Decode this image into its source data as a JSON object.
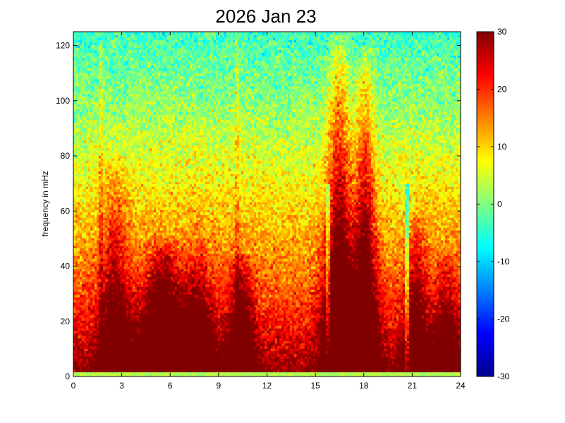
{
  "chart_data": {
    "type": "heatmap",
    "title": "2026 Jan 23",
    "xlabel": "",
    "ylabel": "frequency in mHz",
    "xlim": [
      0,
      24
    ],
    "ylim": [
      0,
      125
    ],
    "xticks": [
      0,
      3,
      6,
      9,
      12,
      15,
      18,
      21,
      24
    ],
    "yticks": [
      0,
      20,
      40,
      60,
      80,
      100,
      120
    ],
    "colorbar": {
      "colormap": "jet",
      "clim": [
        -30,
        30
      ],
      "ticks": [
        30,
        20,
        10,
        0,
        -10,
        -20,
        -30
      ]
    },
    "grid_resolution": {
      "x_bins": 182,
      "y_bins": 134
    },
    "features": [
      {
        "kind": "base",
        "description_values": {
          "x_range": [
            0,
            24
          ],
          "y_range": [
            0,
            125
          ]
        }
      },
      {
        "kind": "burst",
        "x_center": 5.6,
        "x_width": 0.9,
        "peak_freq": 50,
        "intensity": 30
      },
      {
        "kind": "burst",
        "x_center": 10.4,
        "x_width": 0.5,
        "peak_freq": 45,
        "intensity": 26
      },
      {
        "kind": "burst",
        "x_center": 16.5,
        "x_width": 0.55,
        "peak_freq": 125,
        "intensity": 32
      },
      {
        "kind": "burst",
        "x_center": 18.1,
        "x_width": 0.45,
        "peak_freq": 120,
        "intensity": 30
      },
      {
        "kind": "burst",
        "x_center": 2.6,
        "x_width": 0.6,
        "peak_freq": 80,
        "intensity": 22
      },
      {
        "kind": "burst",
        "x_center": 7.8,
        "x_width": 0.6,
        "peak_freq": 50,
        "intensity": 22
      },
      {
        "kind": "burst",
        "x_center": 21.3,
        "x_width": 0.5,
        "peak_freq": 60,
        "intensity": 22
      },
      {
        "kind": "burst",
        "x_center": 23.2,
        "x_width": 0.5,
        "peak_freq": 45,
        "intensity": 20
      },
      {
        "kind": "gap",
        "x_center": 15.8,
        "x_width": 0.12
      },
      {
        "kind": "gap",
        "x_center": 20.7,
        "x_width": 0.12
      }
    ]
  }
}
